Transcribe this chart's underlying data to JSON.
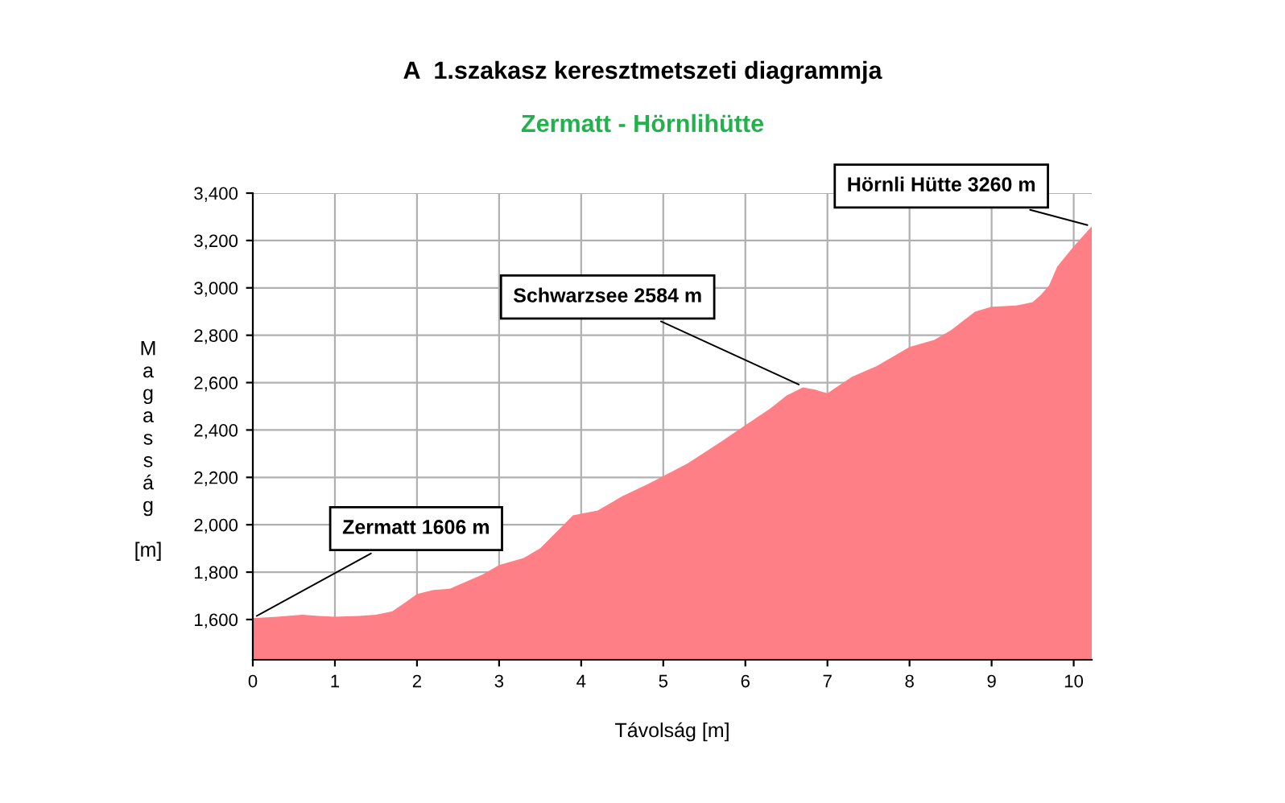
{
  "chart_data": {
    "type": "area",
    "title": "A  1.szakasz keresztmetszeti diagrammja",
    "subtitle": "Zermatt - Hörnlihütte",
    "xlabel": "Távolság [m]",
    "ylabel": "Magasság [m]",
    "x": [
      0,
      0.3,
      0.6,
      0.8,
      1,
      1.3,
      1.5,
      1.7,
      1.85,
      2,
      2.2,
      2.4,
      2.5,
      2.8,
      3,
      3.3,
      3.5,
      3.7,
      3.9,
      4.2,
      4.5,
      4.8,
      5,
      5.3,
      5.7,
      6,
      6.3,
      6.5,
      6.7,
      6.85,
      7,
      7.3,
      7.6,
      8,
      8.3,
      8.5,
      8.8,
      9,
      9.3,
      9.5,
      9.6,
      9.7,
      9.8,
      10,
      10.22
    ],
    "series": [
      {
        "color": "#ff7f86",
        "values": [
          1606,
          1612,
          1620,
          1615,
          1612,
          1615,
          1620,
          1635,
          1670,
          1708,
          1725,
          1730,
          1745,
          1790,
          1830,
          1860,
          1900,
          1970,
          2040,
          2060,
          2120,
          2170,
          2205,
          2260,
          2350,
          2420,
          2490,
          2545,
          2580,
          2570,
          2555,
          2625,
          2670,
          2750,
          2780,
          2820,
          2900,
          2920,
          2925,
          2940,
          2970,
          3010,
          3090,
          3175,
          3260
        ]
      }
    ],
    "xlim": [
      0,
      10.22
    ],
    "ylim": [
      1430,
      3400
    ],
    "xticks": [
      0,
      1,
      2,
      3,
      4,
      5,
      6,
      7,
      8,
      9,
      10
    ],
    "yticks": [
      {
        "value": 1600,
        "label": "1,600"
      },
      {
        "value": 1800,
        "label": "1,800"
      },
      {
        "value": 2000,
        "label": "2,000"
      },
      {
        "value": 2200,
        "label": "2,200"
      },
      {
        "value": 2400,
        "label": "2,400"
      },
      {
        "value": 2600,
        "label": "2,600"
      },
      {
        "value": 2800,
        "label": "2,800"
      },
      {
        "value": 3000,
        "label": "3,000"
      },
      {
        "value": 3200,
        "label": "3,200"
      },
      {
        "value": 3400,
        "label": "3,400"
      }
    ],
    "grid": true,
    "annotations": [
      {
        "text": "Zermatt 1606 m",
        "x": 0,
        "y": 1606
      },
      {
        "text": "Schwarzsee 2584 m",
        "x": 6.7,
        "y": 2584
      },
      {
        "text": "Hörnli Hütte 3260 m",
        "x": 10.22,
        "y": 3260
      }
    ]
  }
}
